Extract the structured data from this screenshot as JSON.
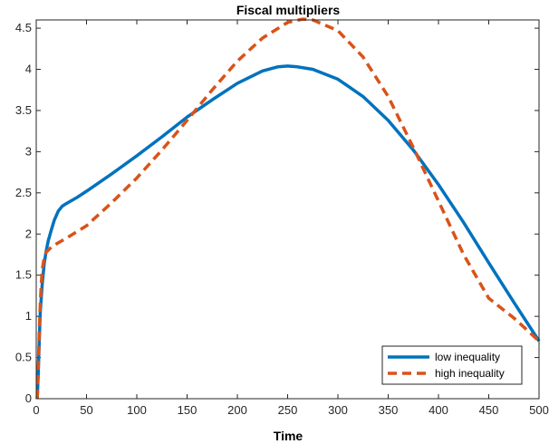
{
  "chart_data": {
    "type": "line",
    "title": "Fiscal multipliers",
    "xlabel": "Time",
    "ylabel": "",
    "xlim": [
      0,
      500
    ],
    "ylim": [
      0,
      4.6
    ],
    "xticks": [
      0,
      50,
      100,
      150,
      200,
      250,
      300,
      350,
      400,
      450,
      500
    ],
    "yticks": [
      0,
      0.5,
      1,
      1.5,
      2,
      2.5,
      3,
      3.5,
      4,
      4.5
    ],
    "ytick_labels": [
      "0",
      "0.5",
      "1",
      "1.5",
      "2",
      "2.5",
      "3",
      "3.5",
      "4",
      "4.5"
    ],
    "grid": false,
    "legend_position": "bottom-right",
    "series": [
      {
        "name": "low inequality",
        "color": "#0072BD",
        "style": "solid",
        "x": [
          1,
          2,
          3,
          4,
          6,
          8,
          10,
          12,
          15,
          18,
          22,
          26,
          30,
          40,
          50,
          75,
          100,
          125,
          150,
          175,
          200,
          225,
          240,
          250,
          260,
          275,
          300,
          325,
          350,
          375,
          400,
          425,
          450,
          475,
          500
        ],
        "y": [
          0.0,
          0.3,
          0.7,
          1.05,
          1.4,
          1.65,
          1.8,
          1.92,
          2.05,
          2.17,
          2.28,
          2.34,
          2.37,
          2.44,
          2.52,
          2.73,
          2.95,
          3.18,
          3.42,
          3.63,
          3.83,
          3.98,
          4.03,
          4.04,
          4.03,
          4.0,
          3.88,
          3.67,
          3.38,
          3.02,
          2.6,
          2.14,
          1.65,
          1.17,
          0.7
        ]
      },
      {
        "name": "high inequality",
        "color": "#D95319",
        "style": "dashed",
        "x": [
          1,
          2,
          3,
          4,
          5,
          6,
          8,
          10,
          15,
          20,
          30,
          50,
          75,
          100,
          125,
          150,
          175,
          200,
          225,
          250,
          265,
          275,
          300,
          325,
          350,
          375,
          400,
          425,
          450,
          475,
          500
        ],
        "y": [
          0.0,
          0.35,
          0.8,
          1.15,
          1.4,
          1.57,
          1.72,
          1.78,
          1.84,
          1.88,
          1.95,
          2.1,
          2.38,
          2.68,
          3.02,
          3.38,
          3.75,
          4.1,
          4.38,
          4.57,
          4.61,
          4.6,
          4.47,
          4.15,
          3.67,
          3.05,
          2.4,
          1.75,
          1.22,
          0.98,
          0.7
        ]
      }
    ]
  }
}
